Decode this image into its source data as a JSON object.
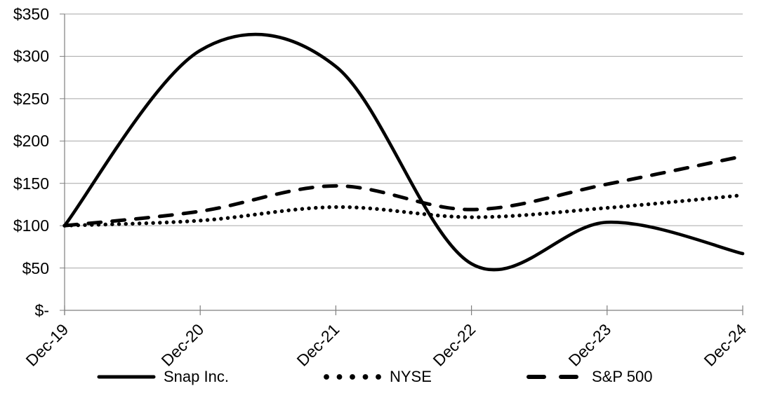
{
  "chart_data": {
    "type": "line",
    "title": "",
    "subtitle": "",
    "xlabel": "",
    "ylabel": "",
    "curve": "smoothed",
    "grid": true,
    "legend_position": "bottom",
    "x_tick_rotation_deg": 45,
    "ylim": [
      0,
      350
    ],
    "categories": [
      "Dec-19",
      "Dec-20",
      "Dec-21",
      "Dec-22",
      "Dec-23",
      "Dec-24"
    ],
    "series": [
      {
        "name": "Snap Inc.",
        "line_style": "solid",
        "values": [
          100,
          307,
          288,
          55,
          104,
          67
        ]
      },
      {
        "name": "NYSE",
        "line_style": "dotted",
        "values": [
          100,
          106,
          122,
          110,
          121,
          136
        ]
      },
      {
        "name": "S&P 500",
        "line_style": "dashed",
        "values": [
          100,
          117,
          147,
          119,
          149,
          182
        ]
      }
    ],
    "y_ticks": [
      {
        "label": "$350",
        "value": 350
      },
      {
        "label": "$300",
        "value": 300
      },
      {
        "label": "$250",
        "value": 250
      },
      {
        "label": "$200",
        "value": 200
      },
      {
        "label": "$150",
        "value": 150
      },
      {
        "label": "$100",
        "value": 100
      },
      {
        "label": "$50",
        "value": 50
      },
      {
        "label": "$-",
        "value": 0
      }
    ],
    "colors": {
      "line": "#000000",
      "grid": "#a6a6a6",
      "axis": "#7f7f7f",
      "background": "#ffffff",
      "text": "#000000"
    }
  }
}
